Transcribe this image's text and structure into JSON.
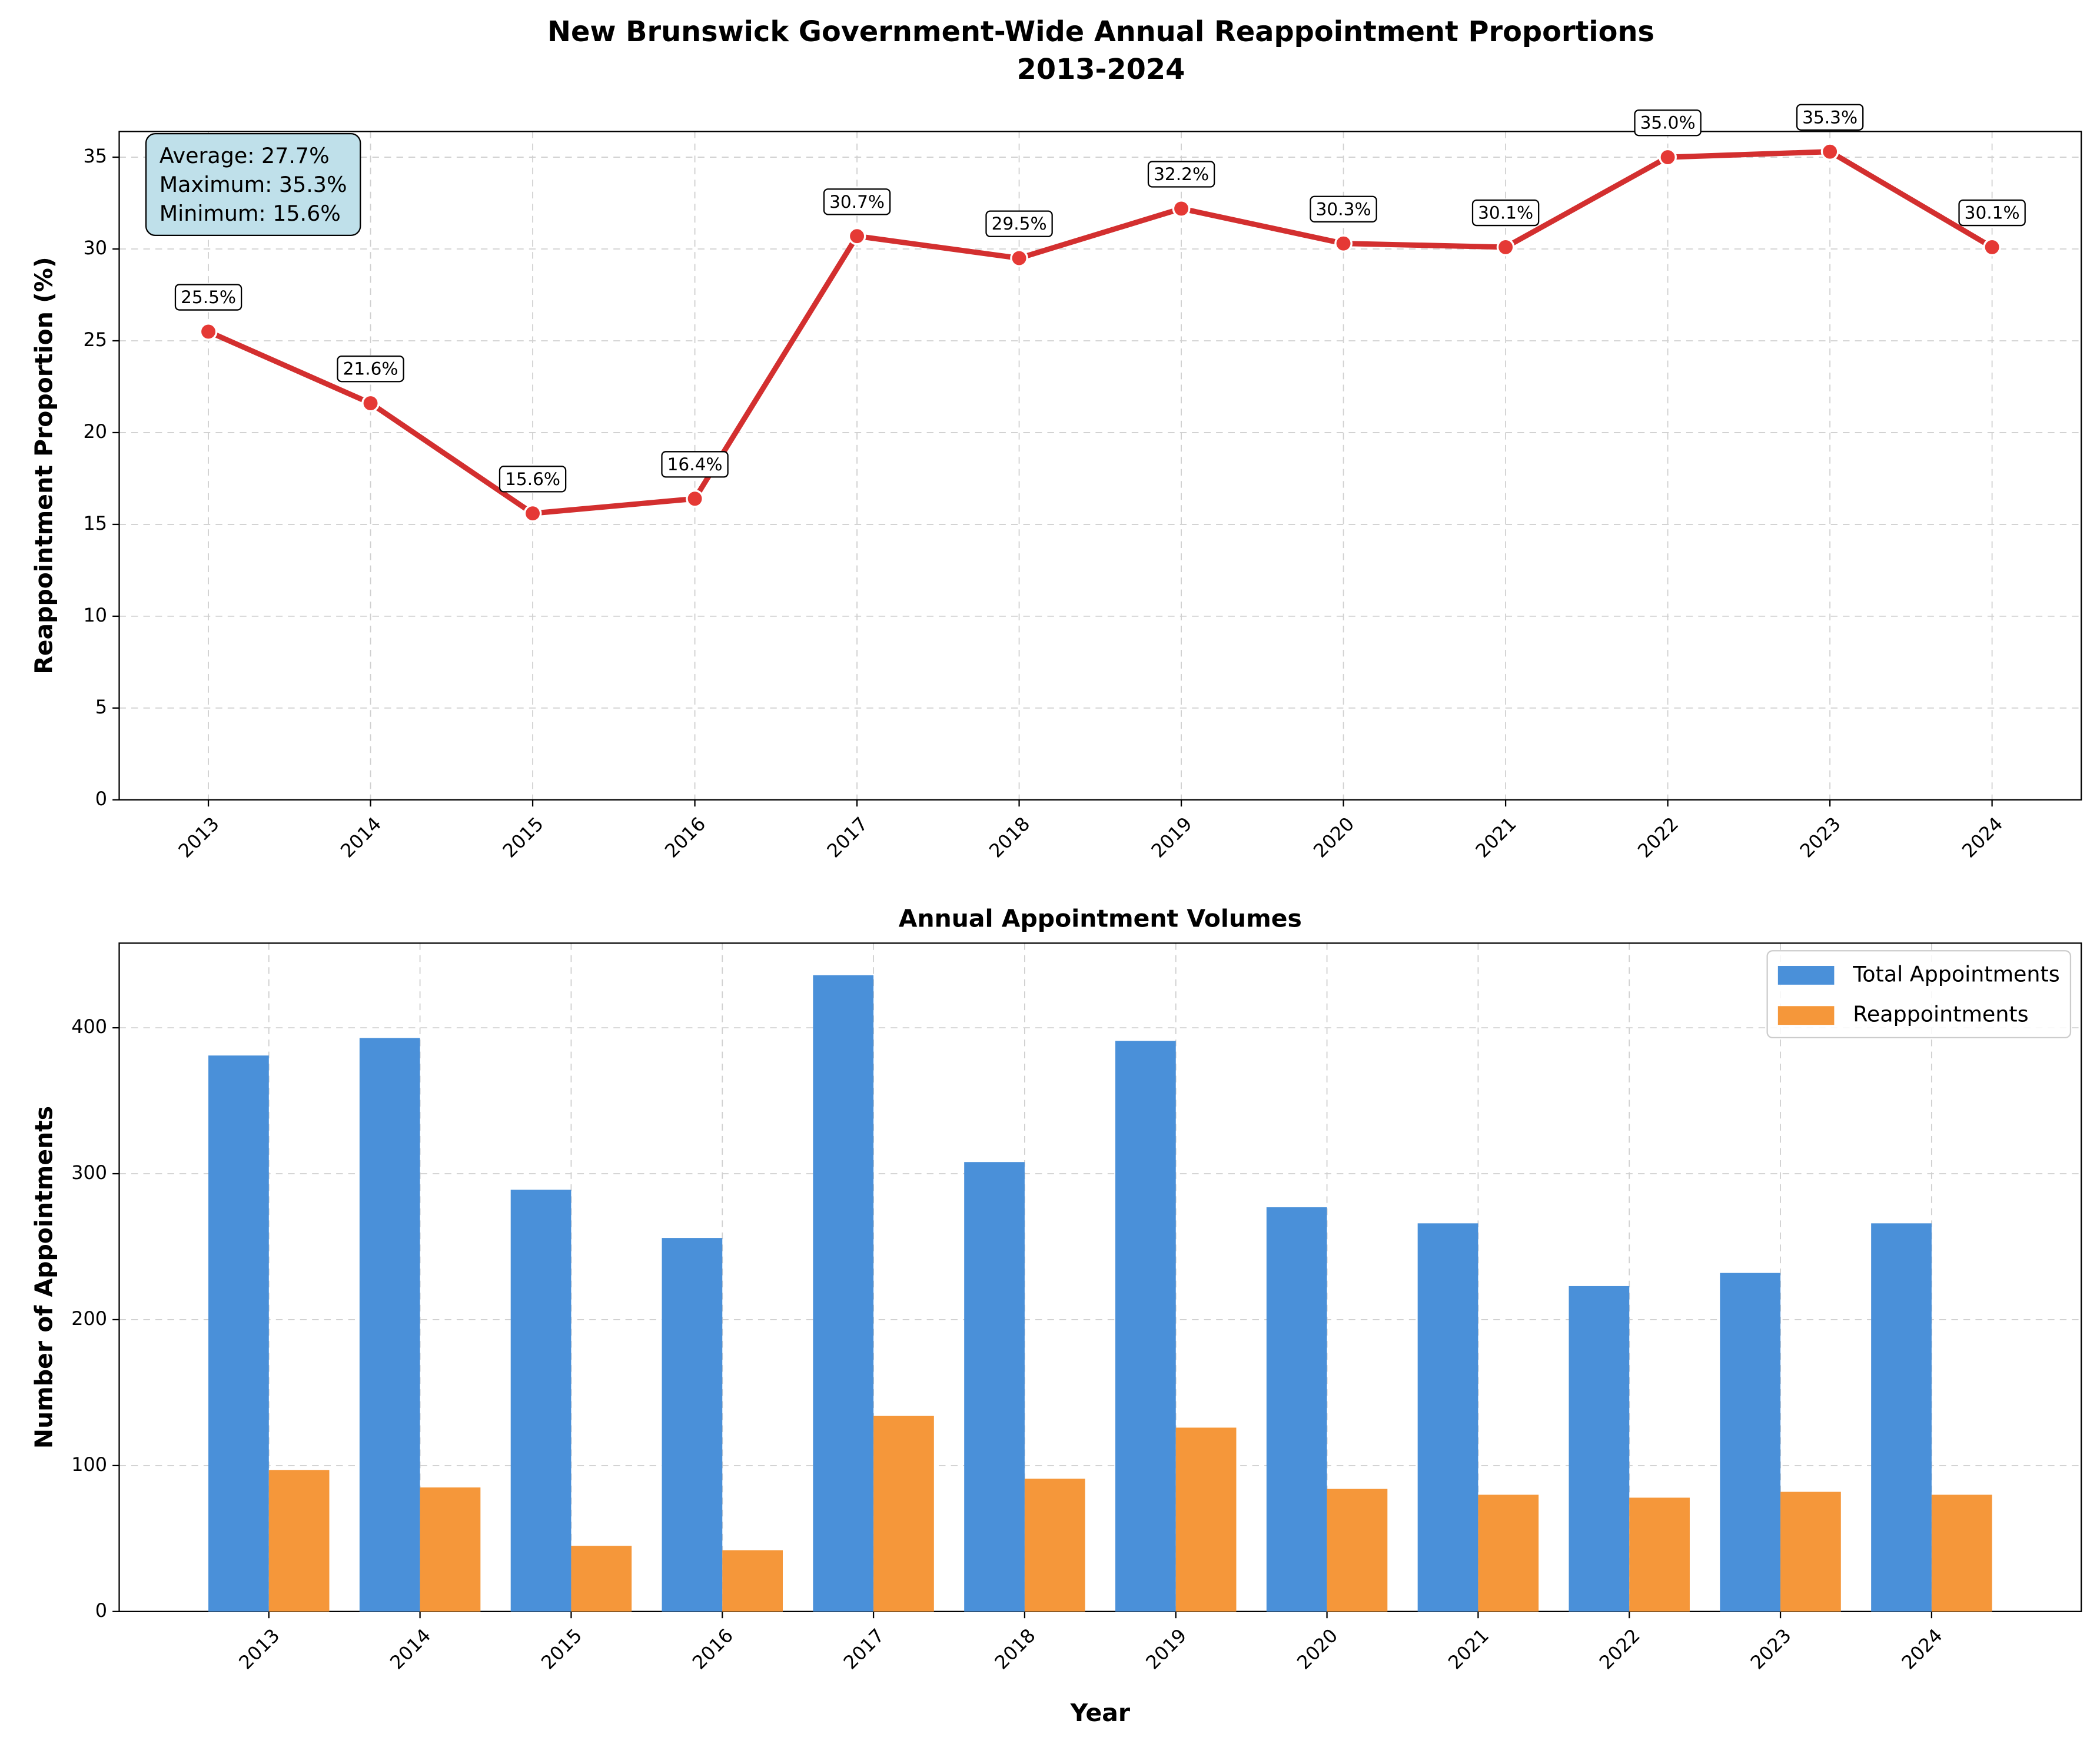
{
  "chart_data": [
    {
      "type": "line",
      "title": "New Brunswick Government-Wide Annual Reappointment Proportions",
      "subtitle": "2013-2024",
      "ylabel": "Reappointment Proportion (%)",
      "categories": [
        "2013",
        "2014",
        "2015",
        "2016",
        "2017",
        "2018",
        "2019",
        "2020",
        "2021",
        "2022",
        "2023",
        "2024"
      ],
      "values": [
        25.5,
        21.6,
        15.6,
        16.4,
        30.7,
        29.5,
        32.2,
        30.3,
        30.1,
        35.0,
        35.3,
        30.1
      ],
      "value_labels": [
        "25.5%",
        "21.6%",
        "15.6%",
        "16.4%",
        "30.7%",
        "29.5%",
        "32.2%",
        "30.3%",
        "30.1%",
        "35.0%",
        "35.3%",
        "30.1%"
      ],
      "color": "#d32f2f",
      "marker_color": "#e53935",
      "annotations": [
        "Average: 27.7%",
        "Maximum: 35.3%",
        "Minimum: 15.6%"
      ],
      "ylim": [
        0,
        36.4
      ],
      "yticks": [
        0,
        5,
        10,
        15,
        20,
        25,
        30,
        35
      ],
      "grid": true
    },
    {
      "type": "bar",
      "title": "Annual Appointment Volumes",
      "xlabel": "Year",
      "ylabel": "Number of Appointments",
      "categories": [
        "2013",
        "2014",
        "2015",
        "2016",
        "2017",
        "2018",
        "2019",
        "2020",
        "2021",
        "2022",
        "2023",
        "2024"
      ],
      "series": [
        {
          "name": "Total Appointments",
          "color": "#4a90d9",
          "values": [
            381,
            393,
            289,
            256,
            436,
            308,
            391,
            277,
            266,
            223,
            232,
            266
          ]
        },
        {
          "name": "Reappointments",
          "color": "#f5973a",
          "values": [
            97,
            85,
            45,
            42,
            134,
            91,
            126,
            84,
            80,
            78,
            82,
            80
          ]
        }
      ],
      "ylim": [
        0,
        458
      ],
      "yticks": [
        0,
        100,
        200,
        300,
        400
      ],
      "grid": true,
      "legend": "upper right"
    }
  ]
}
